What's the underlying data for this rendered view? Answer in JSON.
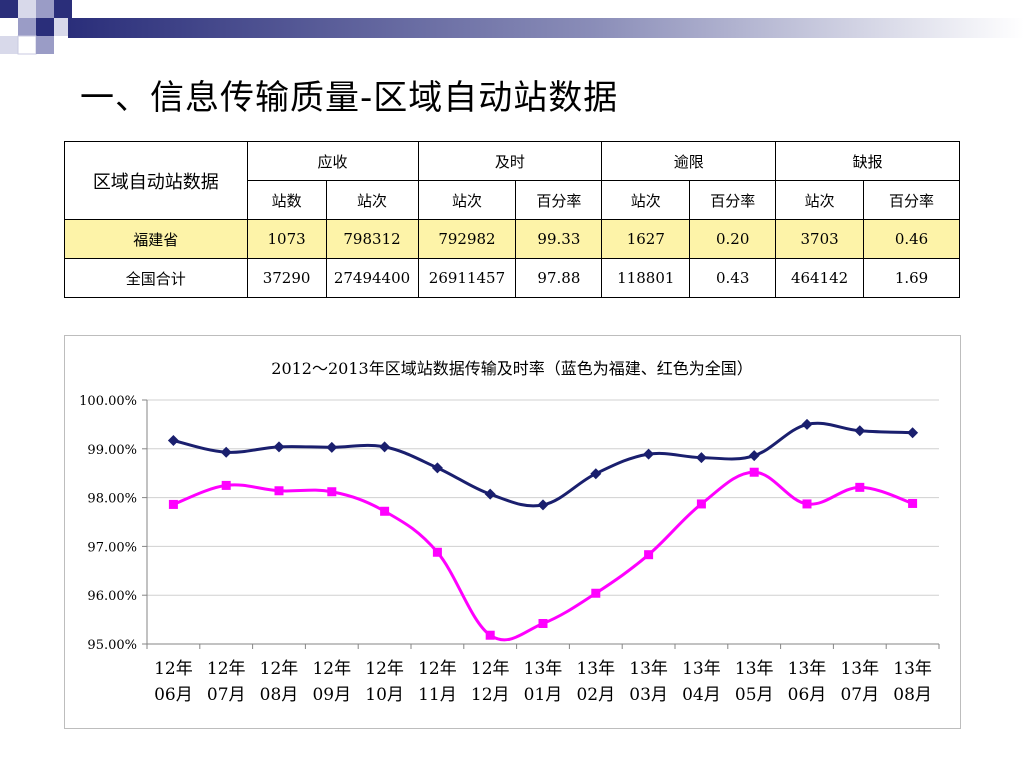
{
  "slide": {
    "title": "一、信息传输质量-区域自动站数据"
  },
  "table": {
    "corner": "区域自动站数据",
    "groups": [
      "应收",
      "及时",
      "逾限",
      "缺报"
    ],
    "subheaders": [
      "站数",
      "站次",
      "站次",
      "百分率",
      "站次",
      "百分率",
      "站次",
      "百分率"
    ],
    "rows": [
      {
        "label": "福建省",
        "cells": [
          "1073",
          "798312",
          "792982",
          "99.33",
          "1627",
          "0.20",
          "3703",
          "0.46"
        ]
      },
      {
        "label": "全国合计",
        "cells": [
          "37290",
          "27494400",
          "26911457",
          "97.88",
          "118801",
          "0.43",
          "464142",
          "1.69"
        ]
      }
    ],
    "highlight_color": "#fdf3a8"
  },
  "chart_data": {
    "type": "line",
    "title": "2012～2013年区域站数据传输及时率（蓝色为福建、红色为全国）",
    "categories": [
      [
        "12年",
        "06月"
      ],
      [
        "12年",
        "07月"
      ],
      [
        "12年",
        "08月"
      ],
      [
        "12年",
        "09月"
      ],
      [
        "12年",
        "10月"
      ],
      [
        "12年",
        "11月"
      ],
      [
        "12年",
        "12月"
      ],
      [
        "13年",
        "01月"
      ],
      [
        "13年",
        "02月"
      ],
      [
        "13年",
        "03月"
      ],
      [
        "13年",
        "04月"
      ],
      [
        "13年",
        "05月"
      ],
      [
        "13年",
        "06月"
      ],
      [
        "13年",
        "07月"
      ],
      [
        "13年",
        "08月"
      ]
    ],
    "y_ticks": [
      "100.00%",
      "99.00%",
      "98.00%",
      "97.00%",
      "96.00%",
      "95.00%"
    ],
    "ylim": [
      95,
      100
    ],
    "grid": true,
    "series": [
      {
        "color": "#1a1f6e",
        "marker": "diamond",
        "values": [
          99.17,
          98.93,
          99.04,
          99.03,
          99.04,
          98.61,
          98.07,
          97.85,
          98.49,
          98.89,
          98.82,
          98.86,
          99.5,
          99.37,
          99.33
        ]
      },
      {
        "color": "#ff00ff",
        "marker": "square",
        "values": [
          97.86,
          98.25,
          98.14,
          98.12,
          97.72,
          96.88,
          95.18,
          95.42,
          96.04,
          96.83,
          97.87,
          98.52,
          97.87,
          98.21,
          97.88
        ]
      }
    ]
  }
}
